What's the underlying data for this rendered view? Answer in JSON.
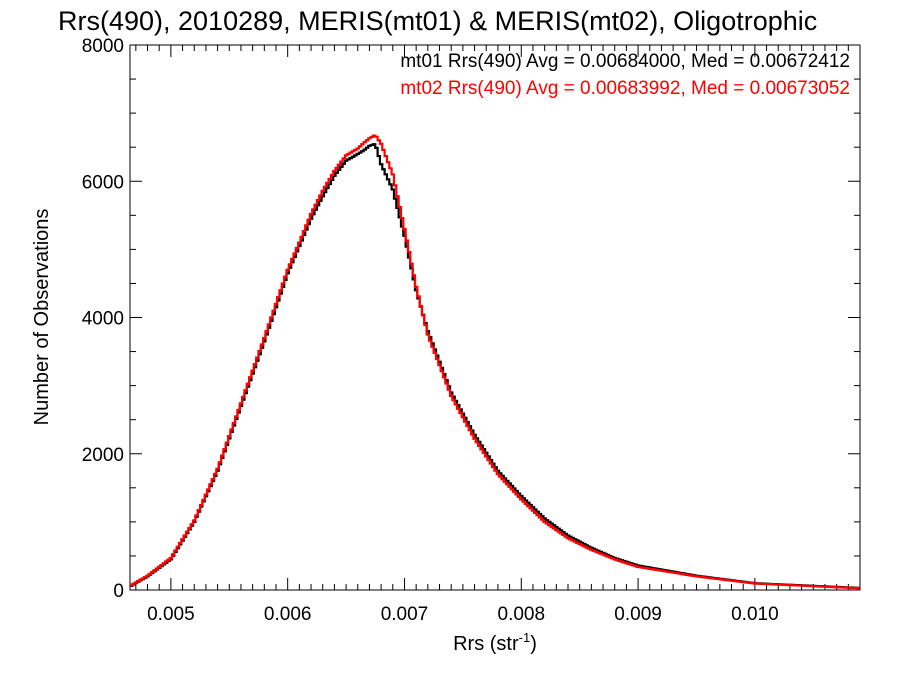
{
  "chart_data": {
    "type": "line",
    "title": "Rrs(490), 2010289, MERIS(mt01) & MERIS(mt02), Oligotrophic",
    "xlabel_main": "Rrs (str",
    "xlabel_sup": "-1",
    "xlabel_close": ")",
    "ylabel": "Number of Observations",
    "xlim": [
      0.00465,
      0.0109
    ],
    "ylim": [
      0,
      8000
    ],
    "x_ticks": [
      0.005,
      0.006,
      0.007,
      0.008,
      0.009,
      0.01
    ],
    "x_tick_labels": [
      "0.005",
      "0.006",
      "0.007",
      "0.008",
      "0.009",
      "0.010"
    ],
    "y_ticks": [
      0,
      2000,
      4000,
      6000,
      8000
    ],
    "y_tick_labels": [
      "0",
      "2000",
      "4000",
      "6000",
      "8000"
    ],
    "grid": false,
    "legend_position": "top-right",
    "series": [
      {
        "label": "mt01 Rrs(490) Avg = 0.00684000, Med = 0.00672412",
        "color": "#000000",
        "x": [
          0.00465,
          0.0048,
          0.005,
          0.0052,
          0.0054,
          0.0056,
          0.0058,
          0.006,
          0.0061,
          0.0062,
          0.0063,
          0.0064,
          0.0065,
          0.0066,
          0.00665,
          0.0067,
          0.00675,
          0.0068,
          0.0069,
          0.007,
          0.0071,
          0.0072,
          0.0074,
          0.0076,
          0.0078,
          0.008,
          0.0082,
          0.0084,
          0.0086,
          0.0088,
          0.009,
          0.0095,
          0.01,
          0.0109
        ],
        "y": [
          50,
          200,
          450,
          1000,
          1750,
          2700,
          3650,
          4650,
          5050,
          5450,
          5780,
          6080,
          6300,
          6400,
          6450,
          6520,
          6550,
          6250,
          5880,
          5200,
          4400,
          3800,
          2900,
          2280,
          1750,
          1380,
          1050,
          800,
          620,
          470,
          360,
          210,
          100,
          30
        ]
      },
      {
        "label": "mt02 Rrs(490) Avg = 0.00683992, Med = 0.00673052",
        "color": "#ff0000",
        "x": [
          0.00465,
          0.0048,
          0.005,
          0.0052,
          0.0054,
          0.0056,
          0.0058,
          0.006,
          0.0061,
          0.0062,
          0.0063,
          0.0064,
          0.0065,
          0.0066,
          0.00665,
          0.0067,
          0.00675,
          0.0068,
          0.0069,
          0.007,
          0.0071,
          0.0072,
          0.0074,
          0.0076,
          0.0078,
          0.008,
          0.0082,
          0.0084,
          0.0086,
          0.0088,
          0.009,
          0.0095,
          0.01,
          0.0109
        ],
        "y": [
          60,
          210,
          470,
          1020,
          1780,
          2740,
          3700,
          4700,
          5100,
          5520,
          5860,
          6150,
          6380,
          6480,
          6560,
          6630,
          6680,
          6550,
          6100,
          5300,
          4450,
          3750,
          2850,
          2220,
          1700,
          1330,
          1000,
          760,
          590,
          450,
          340,
          200,
          95,
          25
        ]
      }
    ]
  }
}
